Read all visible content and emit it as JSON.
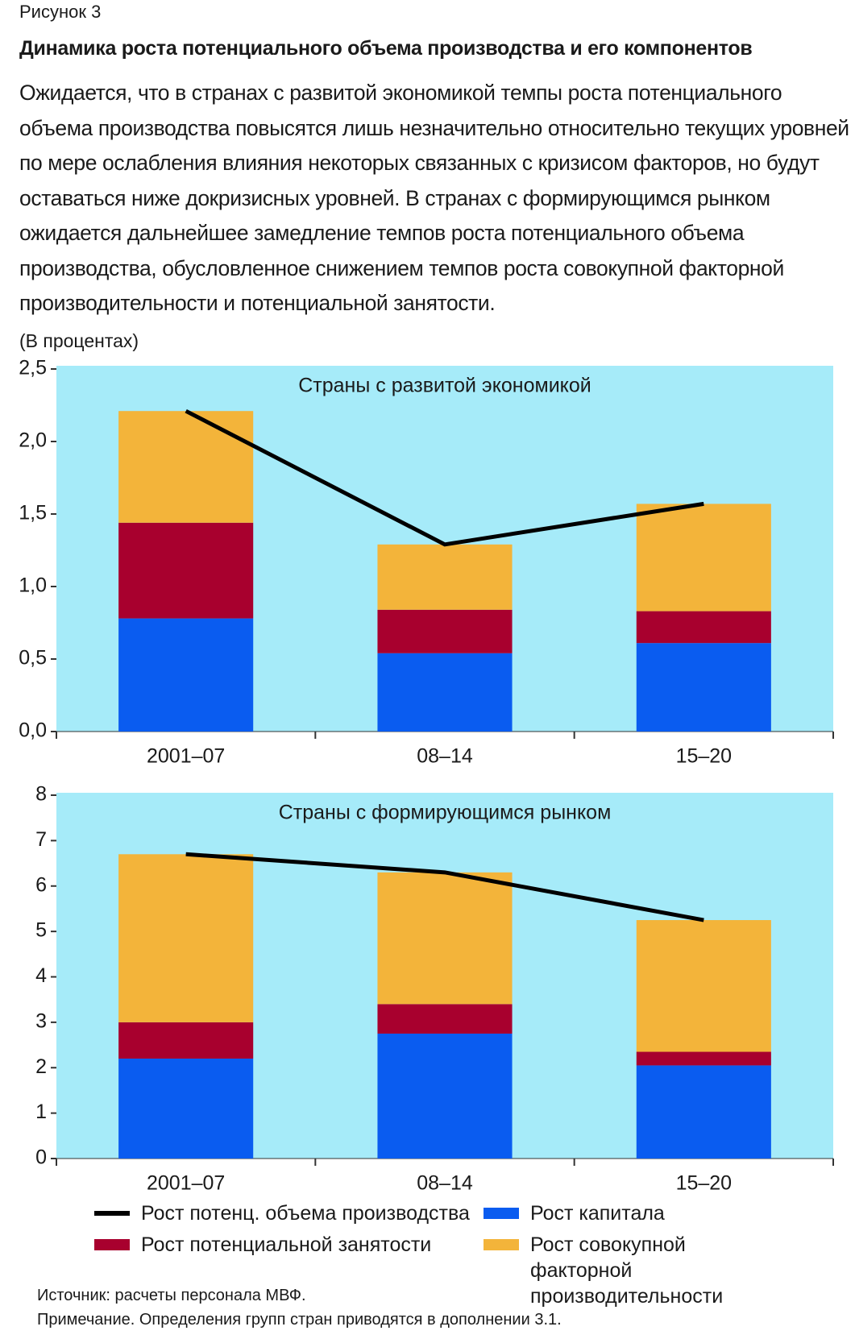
{
  "figure_label": "Рисунок 3",
  "title": "Динамика роста потенциального объема производства и его компонентов",
  "description": "Ожидается, что в странах с развитой экономикой темпы роста потенциального объема производства повысятся лишь незначительно относительно текущих уровней по мере ослабления влияния некоторых связанных с кризисом факторов, но будут оставаться ниже докризисных уровней. В странах с формирующимся рынком ожидается дальнейшее замедление темпов роста потенциального объема производства, обусловленное снижением темпов роста совокупной факторной производительности и потенциальной занятости.",
  "units": "(В процентах)",
  "chart_data": [
    {
      "type": "bar",
      "stacked": true,
      "title": "Страны с развитой экономикой",
      "categories": [
        "2001–07",
        "08–14",
        "15–20"
      ],
      "series": [
        {
          "name": "Рост капитала",
          "type": "bar",
          "color": "#0a5cf0",
          "values": [
            0.78,
            0.54,
            0.61
          ]
        },
        {
          "name": "Рост потенциальной занятости",
          "type": "bar",
          "color": "#a8002e",
          "values": [
            0.66,
            0.3,
            0.22
          ]
        },
        {
          "name": "Рост совокупной факторной производительности",
          "type": "bar",
          "color": "#f3b43a",
          "values": [
            0.77,
            0.45,
            0.74
          ]
        },
        {
          "name": "Рост потенц. объема производства",
          "type": "line",
          "color": "#000000",
          "values": [
            2.21,
            1.29,
            1.57
          ]
        }
      ],
      "ylim": [
        0,
        2.5
      ],
      "yticks": [
        {
          "value": 0,
          "label": "0,0"
        },
        {
          "value": 0.5,
          "label": "0,5"
        },
        {
          "value": 1,
          "label": "1,0"
        },
        {
          "value": 1.5,
          "label": "1,5"
        },
        {
          "value": 2,
          "label": "2,0"
        },
        {
          "value": 2.5,
          "label": "2,5"
        }
      ],
      "background": "#a6ebf9"
    },
    {
      "type": "bar",
      "stacked": true,
      "title": "Страны с формирующимся рынком",
      "categories": [
        "2001–07",
        "08–14",
        "15–20"
      ],
      "series": [
        {
          "type": "bar",
          "color": "#0a5cf0",
          "values": [
            2.2,
            2.75,
            2.05
          ]
        },
        {
          "type": "bar",
          "color": "#a8002e",
          "values": [
            0.8,
            0.65,
            0.3
          ]
        },
        {
          "type": "bar",
          "color": "#f3b43a",
          "values": [
            3.7,
            2.9,
            2.9
          ]
        },
        {
          "type": "line",
          "color": "#000000",
          "values": [
            6.7,
            6.3,
            5.25
          ]
        }
      ],
      "ylim": [
        0,
        8
      ],
      "yticks": [
        0,
        1,
        2,
        3,
        4,
        5,
        6,
        7,
        8
      ],
      "background": "#a6ebf9"
    }
  ],
  "source": "Источник: расчеты персонала МВФ.",
  "note": "Примечание. Определения групп стран приводятся в дополнении 3.1."
}
